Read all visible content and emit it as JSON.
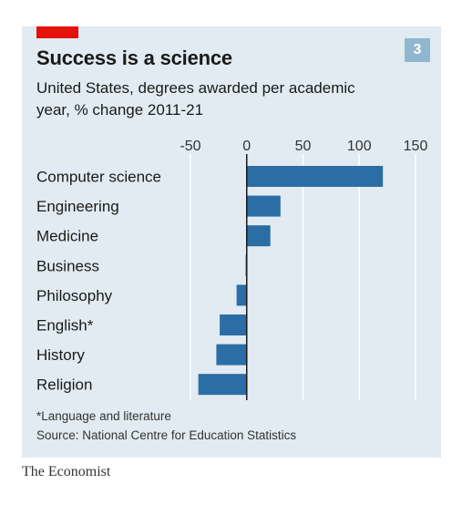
{
  "header": {
    "tag_color": "#e3120b",
    "badge": "3",
    "title": "Success is a science",
    "subtitle": "United States, degrees awarded per academic year, % change 2011-21"
  },
  "footer": {
    "footnote": "*Language and literature",
    "source": "Source: National Centre for Education Statistics",
    "brand": "The Economist"
  },
  "colors": {
    "panel": "#e1ebf1",
    "bar": "#2b6ea6",
    "gridline": "#ffffff",
    "zero_line": "#1a1a1a"
  },
  "chart_data": {
    "type": "bar",
    "orientation": "horizontal",
    "categories": [
      "Computer science",
      "Engineering",
      "Medicine",
      "Business",
      "Philosophy",
      "English*",
      "History",
      "Religion"
    ],
    "values": [
      121,
      30,
      21,
      -1,
      -9,
      -24,
      -27,
      -43
    ],
    "xticks": [
      "-50",
      "0",
      "50",
      "100",
      "150"
    ],
    "xlim": [
      -50,
      150
    ],
    "grid": true,
    "unit": "% change 2011-21"
  }
}
